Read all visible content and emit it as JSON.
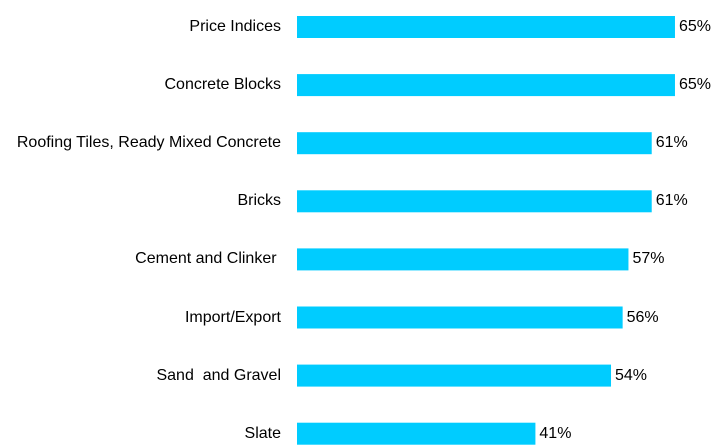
{
  "chart_data": {
    "type": "barh",
    "categories": [
      "Price Indices",
      "Concrete Blocks",
      "Roofing Tiles, Ready Mixed Concrete",
      "Bricks",
      "Cement and Clinker ",
      "Import/Export",
      "Sand  and Gravel",
      "Slate"
    ],
    "values": [
      65,
      65,
      61,
      61,
      57,
      56,
      54,
      41
    ],
    "value_labels": [
      "65%",
      "65%",
      "61%",
      "61%",
      "57%",
      "56%",
      "54%",
      "41%"
    ],
    "color": "#00ccff"
  }
}
